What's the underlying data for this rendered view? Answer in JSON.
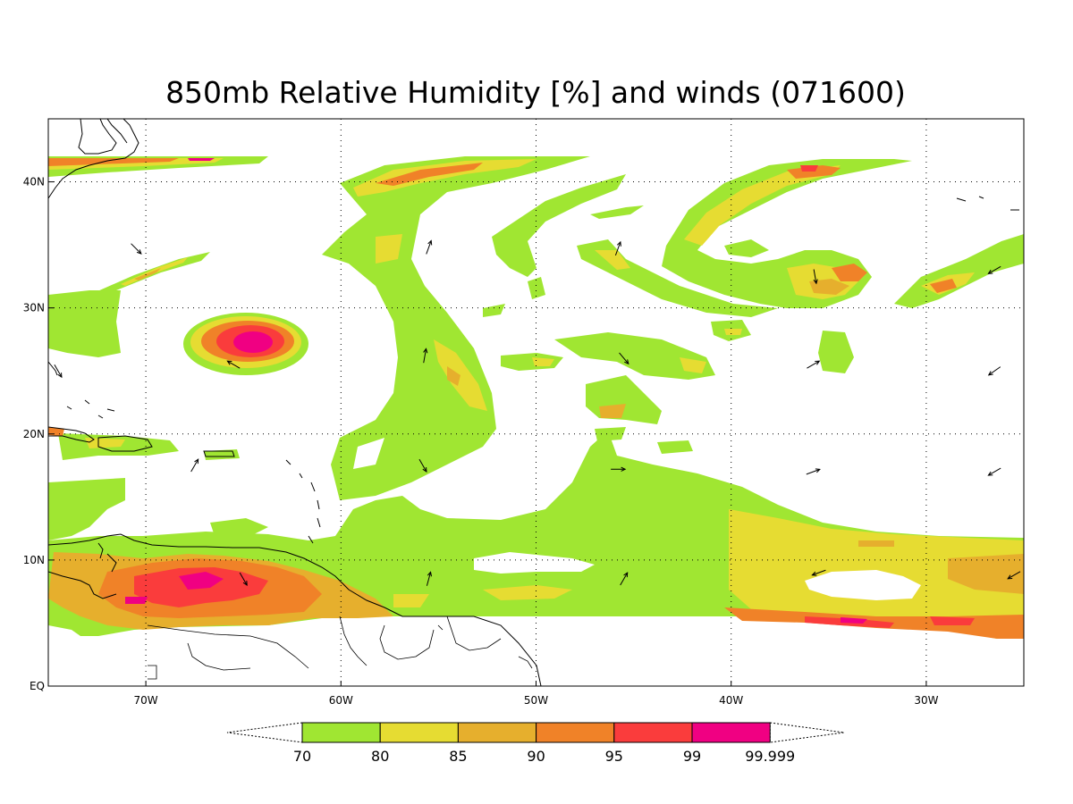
{
  "title": "850mb Relative Humidity [%] and winds (071600)",
  "map": {
    "lon_range": [
      -75,
      -25
    ],
    "lat_range": [
      0,
      45
    ],
    "x_ticks": [
      {
        "lon": -70,
        "label": "70W"
      },
      {
        "lon": -60,
        "label": "60W"
      },
      {
        "lon": -50,
        "label": "50W"
      },
      {
        "lon": -40,
        "label": "40W"
      },
      {
        "lon": -30,
        "label": "30W"
      }
    ],
    "y_ticks": [
      {
        "lat": 0,
        "label": "EQ"
      },
      {
        "lat": 10,
        "label": "10N"
      },
      {
        "lat": 20,
        "label": "20N"
      },
      {
        "lat": 30,
        "label": "30N"
      },
      {
        "lat": 40,
        "label": "40N"
      }
    ],
    "grid": "dotted",
    "data_lat_min": 6
  },
  "colorbar": {
    "labels": [
      "70",
      "80",
      "85",
      "90",
      "95",
      "99",
      "99.999"
    ],
    "colors": [
      "#a0e632",
      "#e6dc32",
      "#e6af2d",
      "#f08228",
      "#fa3c3c",
      "#f00082"
    ],
    "extend": "both"
  },
  "colors": {
    "c70": "#a0e632",
    "c80": "#e6dc32",
    "c85": "#e6af2d",
    "c90": "#f08228",
    "c95": "#fa3c3c",
    "c99": "#f00082"
  },
  "wind_vectors": [
    {
      "lon": -70.5,
      "lat": 34.7,
      "dir": 135
    },
    {
      "lon": -65.5,
      "lat": 25.5,
      "dir": 300
    },
    {
      "lon": -74.5,
      "lat": 25.0,
      "dir": 150
    },
    {
      "lon": -67.5,
      "lat": 17.5,
      "dir": 30
    },
    {
      "lon": -65.0,
      "lat": 8.5,
      "dir": 150
    },
    {
      "lon": -55.5,
      "lat": 34.8,
      "dir": 20
    },
    {
      "lon": -55.7,
      "lat": 26.2,
      "dir": 10
    },
    {
      "lon": -55.8,
      "lat": 17.5,
      "dir": 150
    },
    {
      "lon": -55.5,
      "lat": 8.5,
      "dir": 15
    },
    {
      "lon": -45.8,
      "lat": 34.7,
      "dir": 20
    },
    {
      "lon": -45.5,
      "lat": 26.0,
      "dir": 140
    },
    {
      "lon": -45.8,
      "lat": 17.2,
      "dir": 90
    },
    {
      "lon": -45.5,
      "lat": 8.5,
      "dir": 30
    },
    {
      "lon": -35.7,
      "lat": 32.5,
      "dir": 170
    },
    {
      "lon": -35.8,
      "lat": 25.5,
      "dir": 60
    },
    {
      "lon": -35.8,
      "lat": 17.0,
      "dir": 70
    },
    {
      "lon": -35.5,
      "lat": 9.0,
      "dir": 250
    },
    {
      "lon": -26.5,
      "lat": 33.0,
      "dir": 240
    },
    {
      "lon": -26.5,
      "lat": 25.0,
      "dir": 235
    },
    {
      "lon": -26.5,
      "lat": 17.0,
      "dir": 240
    },
    {
      "lon": -25.5,
      "lat": 8.8,
      "dir": 240
    }
  ]
}
